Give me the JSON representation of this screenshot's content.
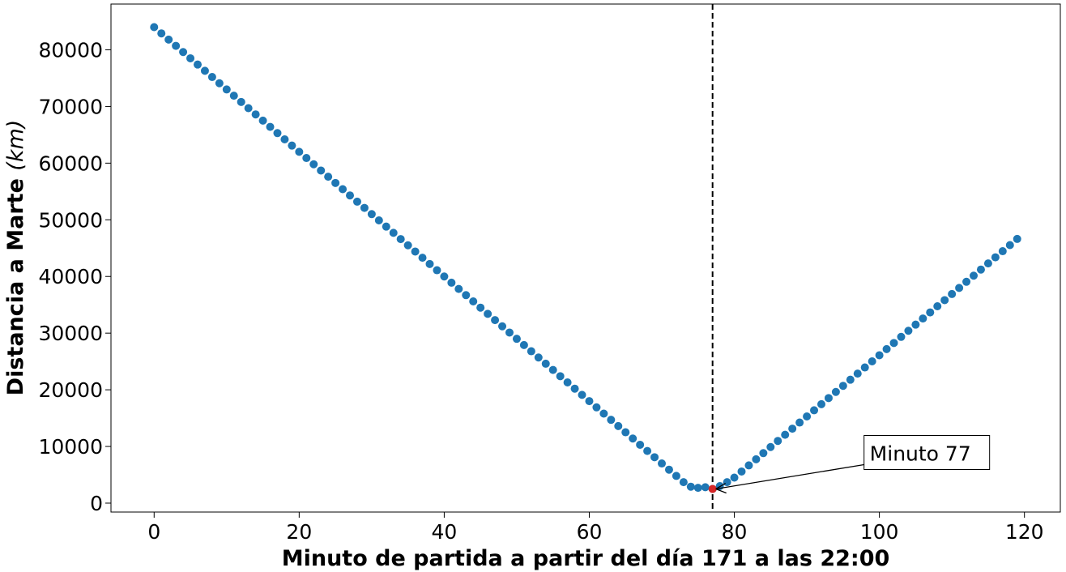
{
  "chart_data": {
    "type": "scatter",
    "xlabel": "Minuto de partida a partir del día 171 a las 22:00",
    "ylabel": "Distancia a Marte",
    "ylabel_unit": "(km)",
    "color": "#1f77b4",
    "x": [
      0,
      1,
      2,
      3,
      4,
      5,
      6,
      7,
      8,
      9,
      10,
      11,
      12,
      13,
      14,
      15,
      16,
      17,
      18,
      19,
      20,
      21,
      22,
      23,
      24,
      25,
      26,
      27,
      28,
      29,
      30,
      31,
      32,
      33,
      34,
      35,
      36,
      37,
      38,
      39,
      40,
      41,
      42,
      43,
      44,
      45,
      46,
      47,
      48,
      49,
      50,
      51,
      52,
      53,
      54,
      55,
      56,
      57,
      58,
      59,
      60,
      61,
      62,
      63,
      64,
      65,
      66,
      67,
      68,
      69,
      70,
      71,
      72,
      73,
      74,
      75,
      76,
      77,
      78,
      79,
      80,
      81,
      82,
      83,
      84,
      85,
      86,
      87,
      88,
      89,
      90,
      91,
      92,
      93,
      94,
      95,
      96,
      97,
      98,
      99,
      100,
      101,
      102,
      103,
      104,
      105,
      106,
      107,
      108,
      109,
      110,
      111,
      112,
      113,
      114,
      115,
      116,
      117,
      118,
      119
    ],
    "values": [
      84000,
      82900,
      81800,
      80700,
      79600,
      78500,
      77400,
      76300,
      75200,
      74100,
      73000,
      71900,
      70800,
      69700,
      68600,
      67500,
      66400,
      65300,
      64200,
      63100,
      62000,
      60900,
      59800,
      58700,
      57600,
      56500,
      55400,
      54300,
      53200,
      52100,
      51000,
      49900,
      48800,
      47700,
      46600,
      45500,
      44400,
      43300,
      42200,
      41100,
      40000,
      38900,
      37800,
      36700,
      35600,
      34500,
      33400,
      32300,
      31200,
      30100,
      29000,
      27900,
      26800,
      25700,
      24600,
      23500,
      22400,
      21300,
      20200,
      19100,
      18000,
      16900,
      15800,
      14700,
      13600,
      12500,
      11400,
      10300,
      9200,
      8100,
      7000,
      5900,
      4800,
      3700,
      2900,
      2700,
      2800,
      2500,
      3000,
      3700,
      4500,
      5580,
      6660,
      7740,
      8820,
      9900,
      10980,
      12060,
      13140,
      14220,
      15300,
      16380,
      17460,
      18540,
      19620,
      20700,
      21780,
      22860,
      23940,
      25020,
      26100,
      27180,
      28260,
      29340,
      30420,
      31500,
      32580,
      33660,
      34740,
      35820,
      36900,
      37980,
      39060,
      40140,
      41220,
      42300,
      43380,
      44460,
      45540,
      46620
    ],
    "highlight": {
      "x": 77,
      "value": 2500,
      "color": "#d62728",
      "annotation": "Minuto 77"
    },
    "xlim": [
      -5.95,
      124.95
    ],
    "xticks": [
      0,
      20,
      40,
      60,
      80,
      100,
      120
    ],
    "ylim": [
      -1575,
      88075
    ],
    "yticks": [
      0,
      10000,
      20000,
      30000,
      40000,
      50000,
      60000,
      70000,
      80000
    ]
  }
}
